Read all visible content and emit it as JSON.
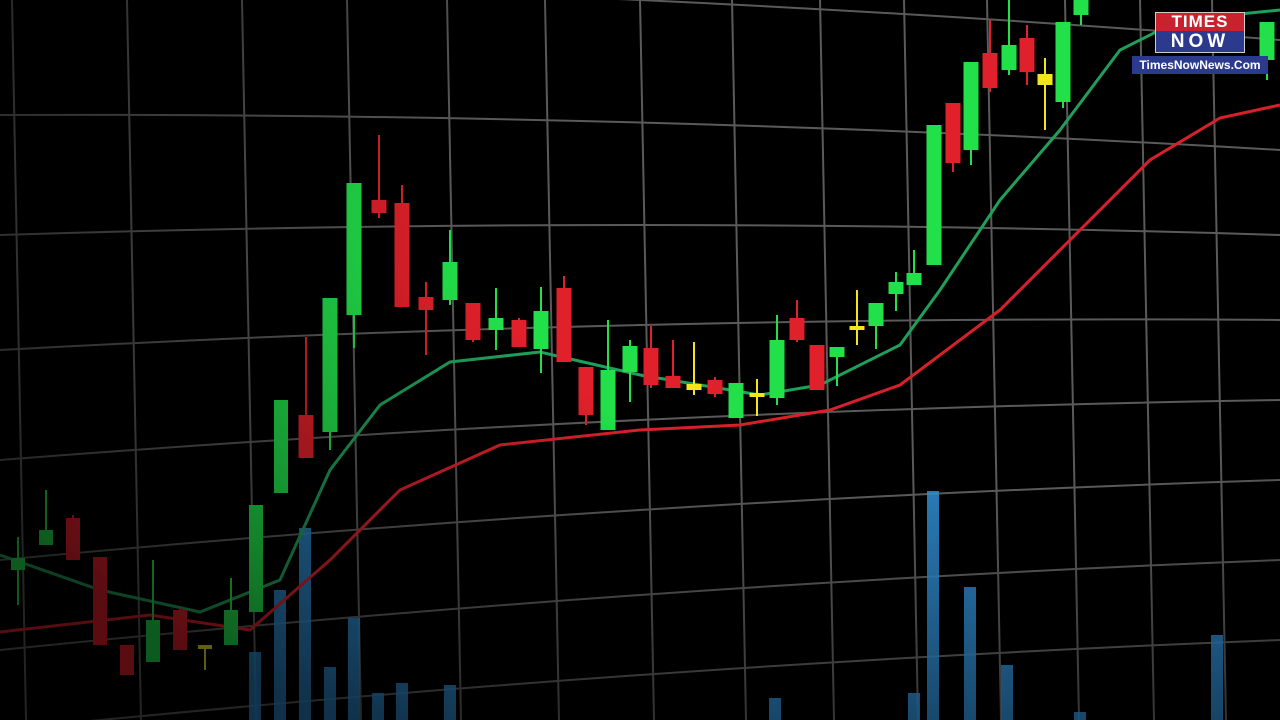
{
  "logo": {
    "line1": "TIMES",
    "line2": "NOW",
    "url": "TimesNowNews.Com"
  },
  "colors": {
    "up": "#22e04a",
    "down": "#e0202a",
    "doji": "#f2e51c",
    "volume": "#2f8fd6",
    "fast_ma": "#1fa05a",
    "slow_ma": "#d8202a",
    "grid": "#5a5a5a"
  }
}
